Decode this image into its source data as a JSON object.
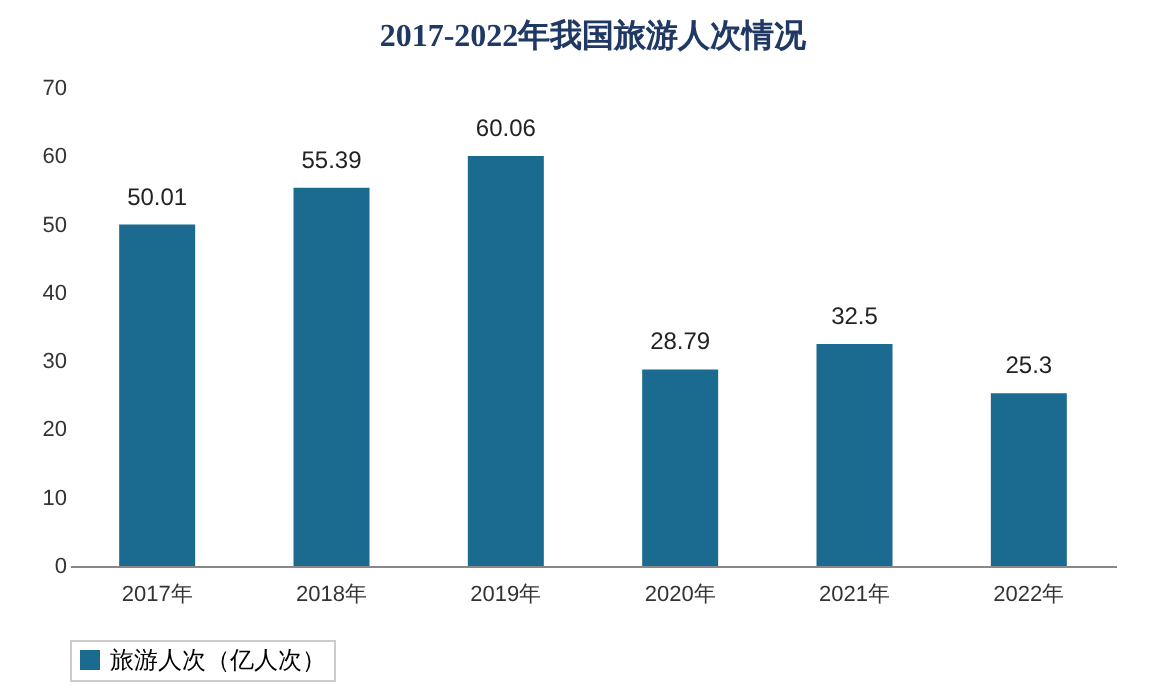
{
  "chart_data": {
    "type": "bar",
    "title": "2017-2022年我国旅游人次情况",
    "categories": [
      "2017年",
      "2018年",
      "2019年",
      "2020年",
      "2021年",
      "2022年"
    ],
    "series": [
      {
        "name": "旅游人次（亿人次）",
        "color": "#1a6b8f",
        "values": [
          50.01,
          55.39,
          60.06,
          28.79,
          32.5,
          25.3
        ]
      }
    ],
    "ylim": [
      0,
      70
    ],
    "yticks": [
      0,
      10,
      20,
      30,
      40,
      50,
      60,
      70
    ],
    "grid": false,
    "legend": "bottom",
    "data_labels": true
  }
}
